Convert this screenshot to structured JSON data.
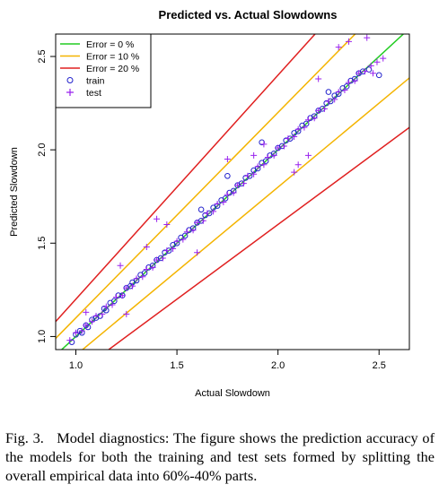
{
  "chart_data": {
    "type": "scatter",
    "title": "Predicted vs. Actual Slowdowns",
    "xlabel": "Actual Slowdown",
    "ylabel": "Predicted Slowdown",
    "xlim": [
      0.9,
      2.65
    ],
    "ylim": [
      0.93,
      2.62
    ],
    "x_ticks": [
      "1.0",
      "1.5",
      "2.0",
      "2.5"
    ],
    "y_ticks": [
      "1.0",
      "1.5",
      "2.0",
      "2.5"
    ],
    "grid": false,
    "legend_position": "top-left",
    "reference_lines": [
      {
        "name": "Error = 0 %",
        "error": 0.0,
        "color": "#22cc22"
      },
      {
        "name": "Error = 10 %",
        "error": 0.1,
        "color": "#f4b400"
      },
      {
        "name": "Error = 20 %",
        "error": 0.2,
        "color": "#e02020"
      }
    ],
    "series": [
      {
        "name": "train",
        "marker": "circle",
        "color": "#2222cc",
        "x": [
          0.98,
          1.0,
          1.02,
          1.03,
          1.05,
          1.06,
          1.08,
          1.1,
          1.12,
          1.14,
          1.15,
          1.17,
          1.19,
          1.21,
          1.23,
          1.25,
          1.27,
          1.28,
          1.3,
          1.32,
          1.34,
          1.36,
          1.38,
          1.4,
          1.42,
          1.44,
          1.46,
          1.48,
          1.5,
          1.52,
          1.54,
          1.56,
          1.58,
          1.6,
          1.62,
          1.64,
          1.66,
          1.68,
          1.7,
          1.72,
          1.74,
          1.76,
          1.78,
          1.8,
          1.82,
          1.84,
          1.86,
          1.88,
          1.9,
          1.92,
          1.94,
          1.96,
          1.98,
          2.0,
          2.02,
          2.04,
          2.06,
          2.08,
          2.1,
          2.12,
          2.14,
          2.16,
          2.18,
          2.2,
          2.22,
          2.24,
          2.26,
          2.28,
          2.3,
          2.32,
          2.34,
          2.36,
          2.38,
          2.4,
          2.42,
          2.45,
          2.5,
          1.75,
          1.62,
          1.92,
          2.25
        ],
        "y": [
          0.97,
          1.01,
          1.03,
          1.02,
          1.06,
          1.05,
          1.09,
          1.1,
          1.11,
          1.15,
          1.14,
          1.18,
          1.19,
          1.22,
          1.22,
          1.26,
          1.27,
          1.29,
          1.3,
          1.33,
          1.34,
          1.37,
          1.38,
          1.41,
          1.42,
          1.45,
          1.46,
          1.49,
          1.5,
          1.53,
          1.54,
          1.57,
          1.58,
          1.61,
          1.62,
          1.65,
          1.66,
          1.69,
          1.7,
          1.73,
          1.74,
          1.77,
          1.78,
          1.81,
          1.82,
          1.85,
          1.86,
          1.89,
          1.9,
          1.93,
          1.94,
          1.97,
          1.98,
          2.01,
          2.02,
          2.05,
          2.06,
          2.09,
          2.1,
          2.13,
          2.14,
          2.17,
          2.18,
          2.21,
          2.22,
          2.25,
          2.26,
          2.29,
          2.3,
          2.33,
          2.34,
          2.37,
          2.38,
          2.41,
          2.42,
          2.43,
          2.4,
          1.86,
          1.68,
          2.04,
          2.31
        ]
      },
      {
        "name": "test",
        "marker": "plus",
        "color": "#9922ee",
        "x": [
          0.97,
          1.0,
          1.03,
          1.05,
          1.08,
          1.1,
          1.13,
          1.15,
          1.18,
          1.2,
          1.23,
          1.25,
          1.28,
          1.3,
          1.33,
          1.35,
          1.38,
          1.4,
          1.43,
          1.45,
          1.48,
          1.5,
          1.53,
          1.55,
          1.58,
          1.6,
          1.63,
          1.65,
          1.68,
          1.7,
          1.73,
          1.75,
          1.78,
          1.8,
          1.83,
          1.85,
          1.88,
          1.9,
          1.93,
          1.95,
          1.98,
          2.0,
          2.03,
          2.05,
          2.08,
          2.1,
          2.13,
          2.15,
          2.18,
          2.2,
          2.23,
          2.25,
          2.28,
          2.3,
          2.33,
          2.35,
          2.38,
          2.4,
          2.43,
          2.46,
          2.49,
          2.52,
          1.4,
          1.45,
          1.75,
          2.15,
          2.2,
          2.3,
          2.08,
          1.22,
          1.25,
          1.6,
          1.93,
          2.35,
          2.44,
          2.47,
          1.05,
          1.35,
          1.88,
          2.1
        ],
        "y": [
          0.98,
          1.02,
          1.03,
          1.06,
          1.08,
          1.11,
          1.12,
          1.16,
          1.17,
          1.21,
          1.22,
          1.26,
          1.27,
          1.31,
          1.32,
          1.36,
          1.37,
          1.41,
          1.42,
          1.46,
          1.47,
          1.51,
          1.52,
          1.56,
          1.57,
          1.61,
          1.62,
          1.66,
          1.67,
          1.71,
          1.72,
          1.76,
          1.77,
          1.81,
          1.82,
          1.86,
          1.87,
          1.91,
          1.92,
          1.96,
          1.97,
          2.01,
          2.02,
          2.06,
          2.07,
          2.11,
          2.12,
          2.16,
          2.17,
          2.21,
          2.22,
          2.26,
          2.27,
          2.31,
          2.32,
          2.36,
          2.37,
          2.41,
          2.42,
          2.45,
          2.47,
          2.49,
          1.63,
          1.6,
          1.95,
          1.97,
          2.38,
          2.55,
          1.88,
          1.38,
          1.12,
          1.45,
          2.03,
          2.58,
          2.6,
          2.41,
          1.13,
          1.48,
          1.97,
          1.92
        ]
      }
    ]
  },
  "caption": {
    "label": "Fig. 3.",
    "text": "Model diagnostics: The figure shows the prediction accuracy of the models for both the training and test sets formed by splitting the overall empirical data into 60%-40% parts."
  }
}
